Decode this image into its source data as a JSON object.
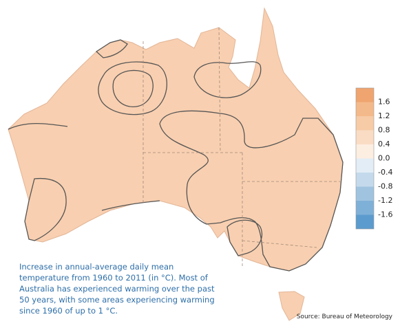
{
  "caption": [
    "Increase in annual-average daily mean",
    "temperature from 1960 to 2011 (in °C). Most of",
    "Australia has experienced warming over the past",
    "50 years, with some areas experiencing warming",
    "since 1960 of up to 1 °C."
  ],
  "source": "Source: Bureau of Meteorology",
  "legend": {
    "labels": [
      "1.6",
      "1.2",
      "0.8",
      "0.4",
      "0.0",
      "-0.4",
      "-0.8",
      "-1.2",
      "-1.6"
    ],
    "colors": [
      "#f0a46f",
      "#f4b98a",
      "#f7cba6",
      "#fadcc4",
      "#fdeee2",
      "#e3edf6",
      "#c4daec",
      "#a0c4e0",
      "#7fb0d7",
      "#5c9bcd"
    ]
  }
}
